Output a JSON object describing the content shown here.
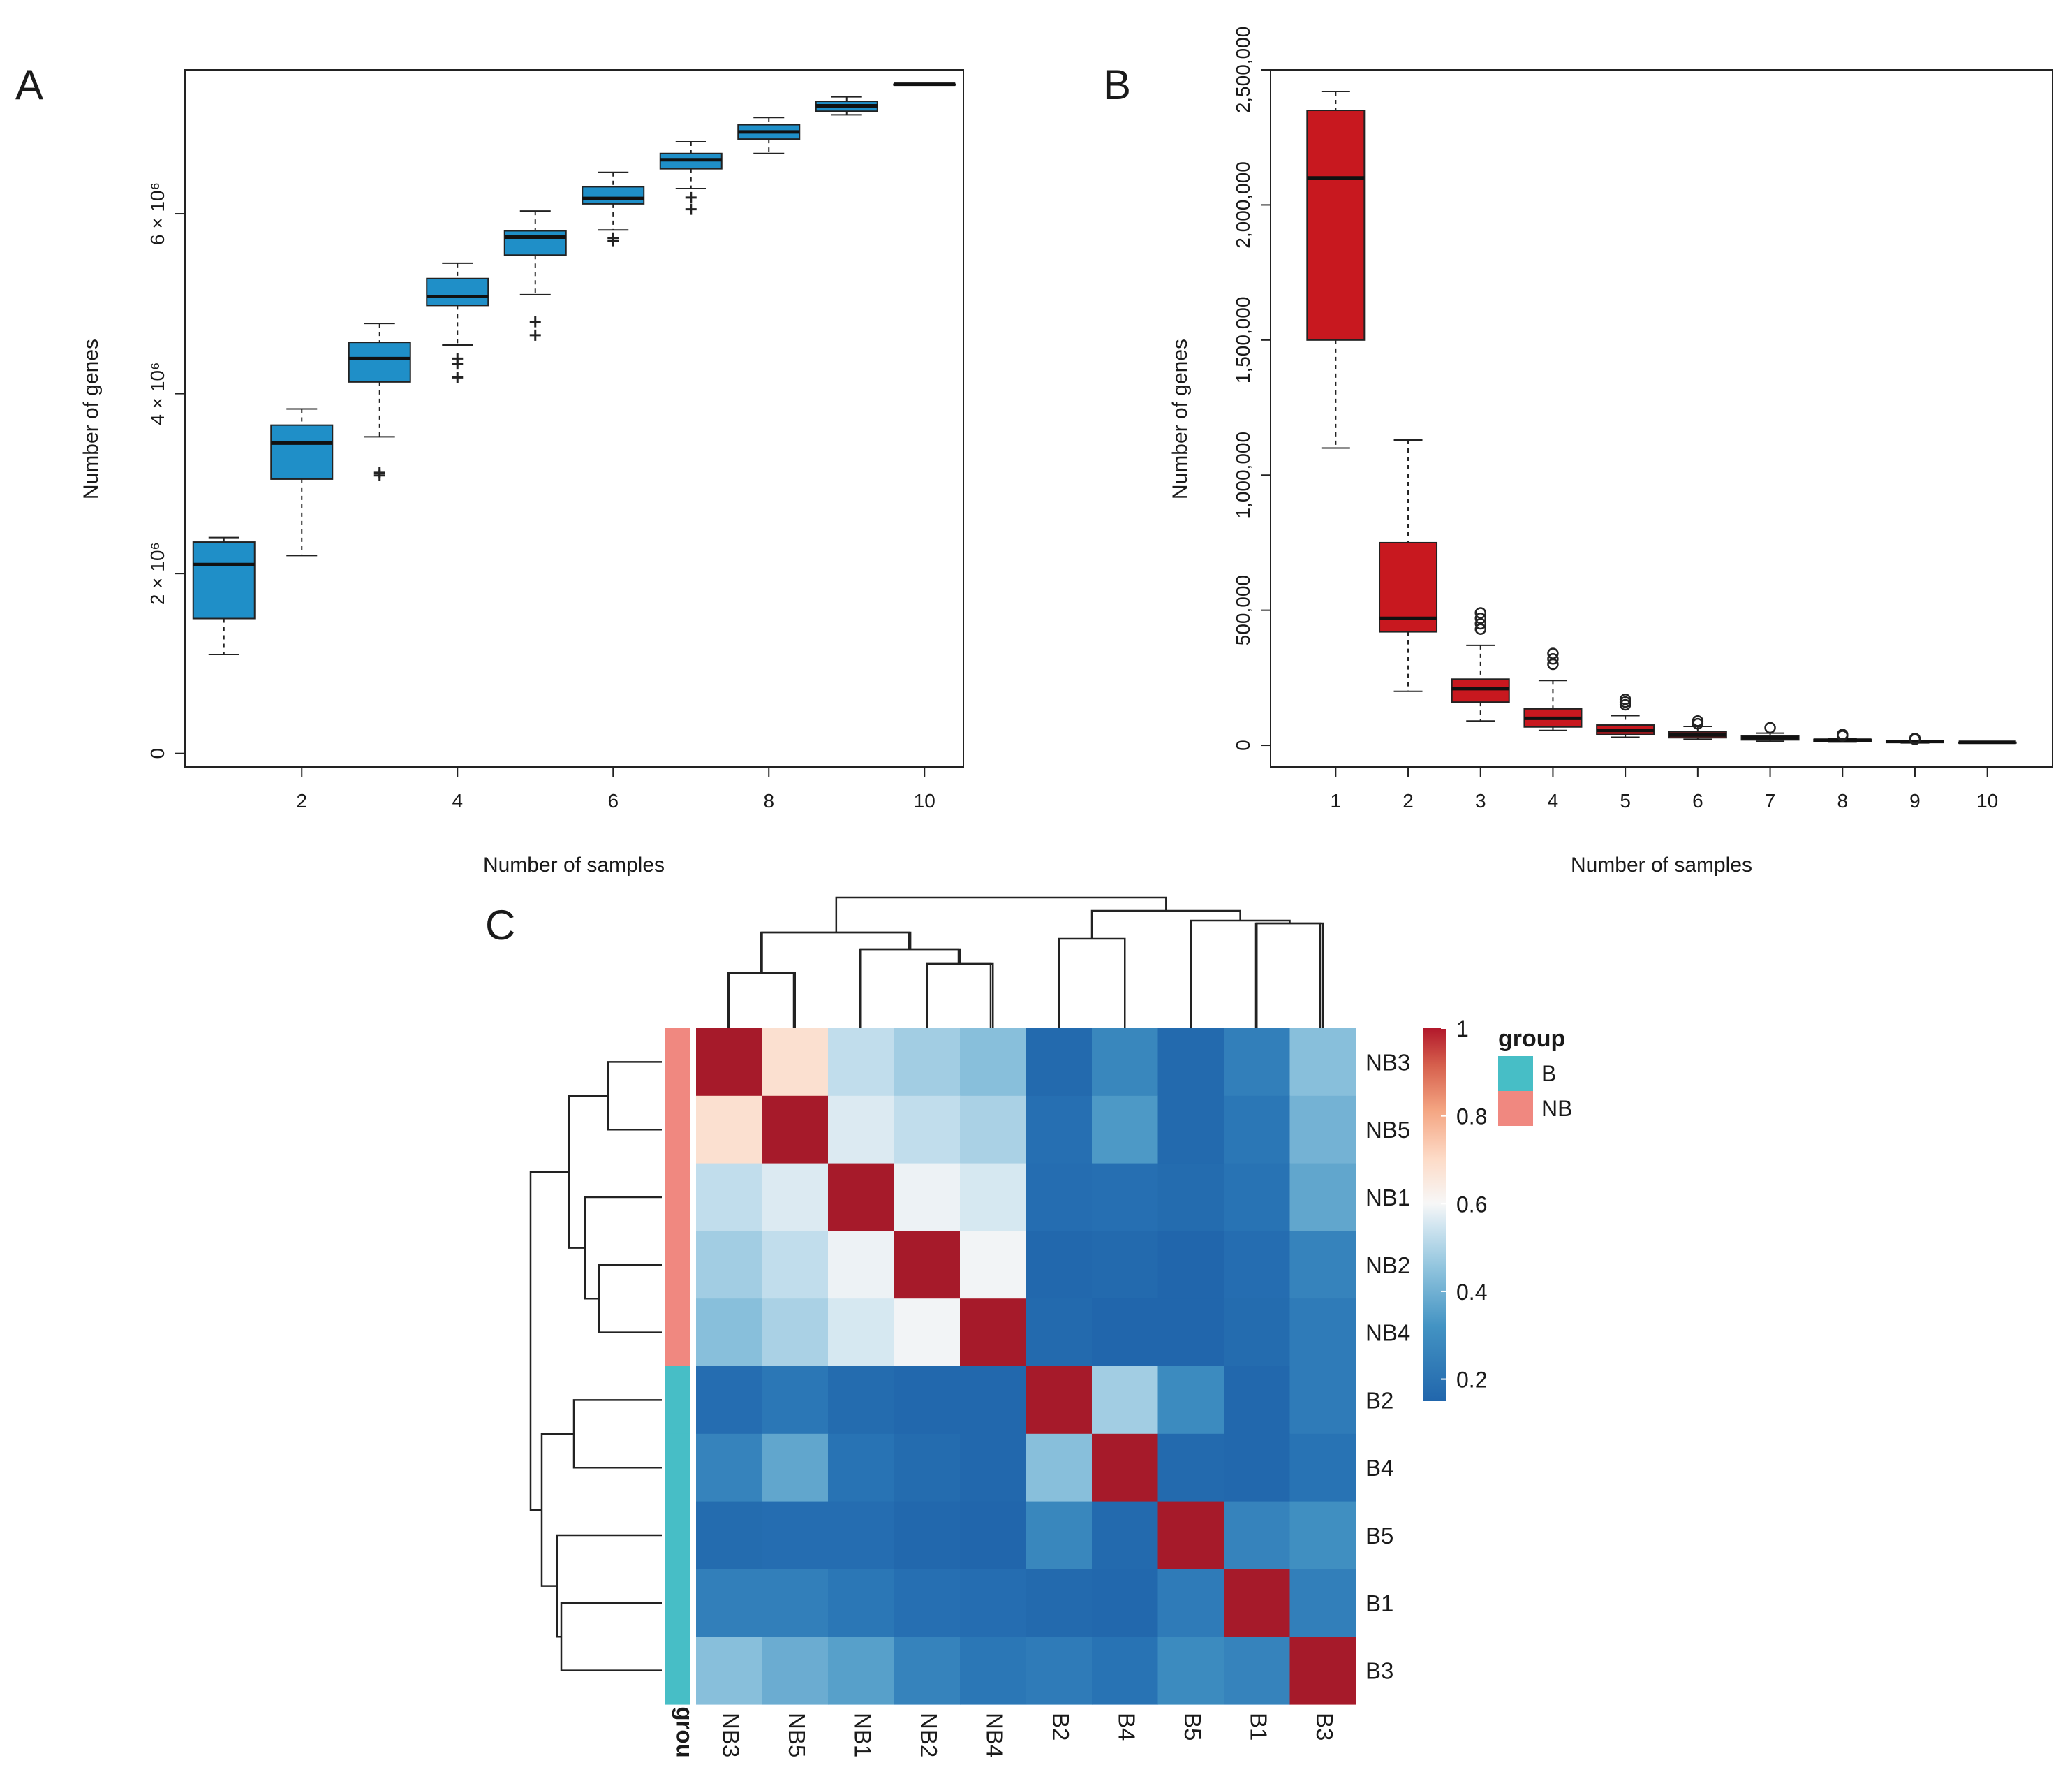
{
  "chart_data": [
    {
      "panel": "A",
      "type": "box",
      "title": "",
      "xlabel": "Number of samples",
      "ylabel": "Number of genes",
      "x_ticks": [
        2,
        4,
        6,
        8,
        10
      ],
      "y_ticks": [
        {
          "value": 0,
          "label": "0"
        },
        {
          "value": 2000000,
          "label": "2 × 10⁶"
        },
        {
          "value": 4000000,
          "label": "4 × 10⁶"
        },
        {
          "value": 6000000,
          "label": "6 × 10⁶"
        }
      ],
      "xlim": [
        0.5,
        10.5
      ],
      "ylim": [
        -150000,
        7600000
      ],
      "fill_color": "#1F8FC8",
      "boxes": [
        {
          "x": 1,
          "whisker_low": 1100000,
          "q1": 1500000,
          "median": 2100000,
          "q3": 2350000,
          "whisker_high": 2400000,
          "outliers": []
        },
        {
          "x": 2,
          "whisker_low": 2200000,
          "q1": 3050000,
          "median": 3450000,
          "q3": 3650000,
          "whisker_high": 3830000,
          "outliers": []
        },
        {
          "x": 3,
          "whisker_low": 3520000,
          "q1": 4130000,
          "median": 4390000,
          "q3": 4570000,
          "whisker_high": 4780000,
          "outliers": [
            3090000,
            3120000
          ]
        },
        {
          "x": 4,
          "whisker_low": 4540000,
          "q1": 4980000,
          "median": 5080000,
          "q3": 5280000,
          "whisker_high": 5450000,
          "outliers": [
            4180000,
            4330000,
            4390000
          ]
        },
        {
          "x": 5,
          "whisker_low": 5100000,
          "q1": 5540000,
          "median": 5740000,
          "q3": 5810000,
          "whisker_high": 6030000,
          "outliers": [
            4650000,
            4800000
          ]
        },
        {
          "x": 6,
          "whisker_low": 5820000,
          "q1": 6110000,
          "median": 6170000,
          "q3": 6300000,
          "whisker_high": 6460000,
          "outliers": [
            5700000,
            5730000
          ]
        },
        {
          "x": 7,
          "whisker_low": 6280000,
          "q1": 6500000,
          "median": 6600000,
          "q3": 6670000,
          "whisker_high": 6800000,
          "outliers": [
            6050000,
            6180000
          ]
        },
        {
          "x": 8,
          "whisker_low": 6670000,
          "q1": 6830000,
          "median": 6910000,
          "q3": 6990000,
          "whisker_high": 7070000,
          "outliers": []
        },
        {
          "x": 9,
          "whisker_low": 7100000,
          "q1": 7140000,
          "median": 7200000,
          "q3": 7250000,
          "whisker_high": 7300000,
          "outliers": []
        },
        {
          "x": 10,
          "whisker_low": 7440000,
          "q1": 7440000,
          "median": 7440000,
          "q3": 7440000,
          "whisker_high": 7440000,
          "outliers": []
        }
      ]
    },
    {
      "panel": "B",
      "type": "box",
      "title": "",
      "xlabel": "Number of samples",
      "ylabel": "Number of genes",
      "x_ticks": [
        1,
        2,
        3,
        4,
        5,
        6,
        7,
        8,
        9,
        10
      ],
      "y_ticks": [
        {
          "value": 0,
          "label": "0"
        },
        {
          "value": 500000,
          "label": "500,000"
        },
        {
          "value": 1000000,
          "label": "1,000,000"
        },
        {
          "value": 1500000,
          "label": "1,500,000"
        },
        {
          "value": 2000000,
          "label": "2,000,000"
        },
        {
          "value": 2500000,
          "label": "2,500,000"
        }
      ],
      "xlim": [
        0.1,
        10.9
      ],
      "ylim": [
        -80000,
        2500000
      ],
      "fill_color": "#C8181F",
      "boxes": [
        {
          "x": 1,
          "whisker_low": 1100000,
          "q1": 1500000,
          "median": 2100000,
          "q3": 2350000,
          "whisker_high": 2420000,
          "outliers": []
        },
        {
          "x": 2,
          "whisker_low": 200000,
          "q1": 420000,
          "median": 470000,
          "q3": 750000,
          "whisker_high": 1130000,
          "outliers": []
        },
        {
          "x": 3,
          "whisker_low": 90000,
          "q1": 160000,
          "median": 210000,
          "q3": 245000,
          "whisker_high": 370000,
          "outliers": [
            430000,
            450000,
            470000,
            490000
          ]
        },
        {
          "x": 4,
          "whisker_low": 55000,
          "q1": 68000,
          "median": 100000,
          "q3": 135000,
          "whisker_high": 240000,
          "outliers": [
            300000,
            320000,
            340000
          ]
        },
        {
          "x": 5,
          "whisker_low": 30000,
          "q1": 40000,
          "median": 55000,
          "q3": 75000,
          "whisker_high": 110000,
          "outliers": [
            150000,
            160000,
            170000
          ]
        },
        {
          "x": 6,
          "whisker_low": 22000,
          "q1": 28000,
          "median": 38000,
          "q3": 50000,
          "whisker_high": 70000,
          "outliers": [
            80000,
            90000
          ]
        },
        {
          "x": 7,
          "whisker_low": 15000,
          "q1": 20000,
          "median": 28000,
          "q3": 35000,
          "whisker_high": 45000,
          "outliers": [
            65000
          ]
        },
        {
          "x": 8,
          "whisker_low": 12000,
          "q1": 15000,
          "median": 19000,
          "q3": 22000,
          "whisker_high": 26000,
          "outliers": [
            35000,
            40000
          ]
        },
        {
          "x": 9,
          "whisker_low": 9000,
          "q1": 11000,
          "median": 14000,
          "q3": 16000,
          "whisker_high": 18000,
          "outliers": [
            22000,
            25000
          ]
        },
        {
          "x": 10,
          "whisker_low": 11000,
          "q1": 11000,
          "median": 11000,
          "q3": 11000,
          "whisker_high": 11000,
          "outliers": []
        }
      ]
    },
    {
      "panel": "C",
      "type": "heatmap",
      "title": "",
      "row_labels": [
        "NB3",
        "NB5",
        "NB1",
        "NB2",
        "NB4",
        "B2",
        "B4",
        "B5",
        "B1",
        "B3"
      ],
      "col_labels": [
        "NB3",
        "NB5",
        "NB1",
        "NB2",
        "NB4",
        "B2",
        "B4",
        "B5",
        "B1",
        "B3"
      ],
      "group_annotation": {
        "label": "grou",
        "groups": [
          "NB",
          "NB",
          "NB",
          "NB",
          "NB",
          "B",
          "B",
          "B",
          "B",
          "B"
        ]
      },
      "values": [
        [
          1.0,
          0.6,
          0.44,
          0.4,
          0.37,
          0.17,
          0.27,
          0.17,
          0.25,
          0.37
        ],
        [
          0.6,
          1.0,
          0.48,
          0.44,
          0.41,
          0.2,
          0.31,
          0.17,
          0.23,
          0.35
        ],
        [
          0.44,
          0.48,
          1.0,
          0.51,
          0.47,
          0.19,
          0.2,
          0.18,
          0.22,
          0.33
        ],
        [
          0.4,
          0.44,
          0.51,
          1.0,
          0.52,
          0.16,
          0.17,
          0.15,
          0.19,
          0.26
        ],
        [
          0.37,
          0.41,
          0.47,
          0.52,
          1.0,
          0.17,
          0.15,
          0.15,
          0.18,
          0.24
        ],
        [
          0.19,
          0.23,
          0.18,
          0.16,
          0.16,
          1.0,
          0.4,
          0.28,
          0.16,
          0.24
        ],
        [
          0.26,
          0.33,
          0.22,
          0.18,
          0.16,
          0.37,
          1.0,
          0.17,
          0.16,
          0.22
        ],
        [
          0.18,
          0.19,
          0.19,
          0.16,
          0.15,
          0.27,
          0.17,
          1.0,
          0.26,
          0.29
        ],
        [
          0.25,
          0.25,
          0.23,
          0.2,
          0.19,
          0.17,
          0.16,
          0.24,
          1.0,
          0.25
        ],
        [
          0.37,
          0.34,
          0.32,
          0.26,
          0.23,
          0.24,
          0.22,
          0.28,
          0.26,
          1.0
        ]
      ],
      "colorbar": {
        "min": 0.15,
        "max": 1,
        "ticks": [
          0.2,
          0.4,
          0.6,
          0.8,
          1
        ],
        "tick_labels": [
          "0.2",
          "0.4",
          "0.6",
          "0.8",
          "1"
        ]
      },
      "legend": {
        "title": "group",
        "entries": [
          {
            "label": "B",
            "color": "#47BEC6"
          },
          {
            "label": "NB",
            "color": "#F08880"
          }
        ]
      },
      "dendrogram": "hierarchical clustering of rows and columns: (((NB3,NB5),(NB1,(NB2,NB4))),((B2,B4),(B5,(B1,B3))))"
    }
  ]
}
